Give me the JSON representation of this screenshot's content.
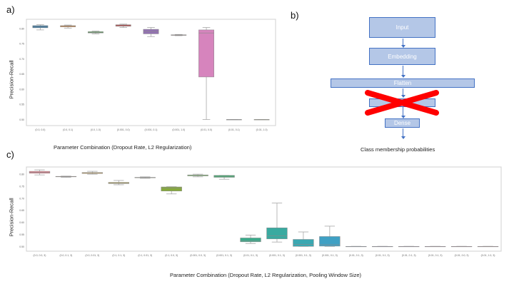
{
  "labels": {
    "a": "a)",
    "b": "b)",
    "c": "c)"
  },
  "chart_data": [
    {
      "type": "box",
      "ylabel": "Precision-Recall",
      "xlabel": "Parameter Combination (Dropout Rate, L2 Regularization)",
      "ylim": [
        0.48,
        0.83
      ],
      "yticks": [
        "0.50",
        "0.55",
        "0.60",
        "0.65",
        "0.70",
        "0.75",
        "0.80"
      ],
      "boxes": [
        {
          "label": "(0.0, 0.0)",
          "color": "#3274a1",
          "min": 0.795,
          "q1": 0.802,
          "median": 0.806,
          "q3": 0.809,
          "max": 0.812
        },
        {
          "label": "(0.0, 0.1)",
          "color": "#e1812c",
          "min": 0.801,
          "q1": 0.805,
          "median": 0.807,
          "q3": 0.809,
          "max": 0.811
        },
        {
          "label": "(0.0, 1.0)",
          "color": "#3a923a",
          "min": 0.782,
          "q1": 0.785,
          "median": 0.787,
          "q3": 0.789,
          "max": 0.791
        },
        {
          "label": "(0.001, 0.0)",
          "color": "#c03d3e",
          "min": 0.803,
          "q1": 0.807,
          "median": 0.809,
          "q3": 0.812,
          "max": 0.814
        },
        {
          "label": "(0.001, 0.1)",
          "color": "#9372b2",
          "min": 0.773,
          "q1": 0.782,
          "median": 0.79,
          "q3": 0.797,
          "max": 0.803
        },
        {
          "label": "(0.001, 1.0)",
          "color": "#845b53",
          "min": 0.776,
          "q1": 0.777,
          "median": 0.778,
          "q3": 0.779,
          "max": 0.78
        },
        {
          "label": "(0.01, 0.0)",
          "color": "#d684bd",
          "min": 0.5,
          "q1": 0.64,
          "median": 0.785,
          "q3": 0.795,
          "max": 0.803
        },
        {
          "label": "(0.01, 0.1)",
          "color": "#7f7f7f",
          "min": 0.5,
          "q1": 0.5,
          "median": 0.5,
          "q3": 0.5,
          "max": 0.5
        },
        {
          "label": "(0.01, 1.0)",
          "color": "#a9aa35",
          "min": 0.5,
          "q1": 0.5,
          "median": 0.5,
          "q3": 0.5,
          "max": 0.5
        }
      ]
    },
    {
      "type": "box",
      "ylabel": "Precision-Recall",
      "xlabel": "Parameter Combination (Dropout Rate, L2 Regularization, Pooling Window Size)",
      "ylim": [
        0.48,
        0.83
      ],
      "yticks": [
        "0.50",
        "0.55",
        "0.60",
        "0.65",
        "0.70",
        "0.75",
        "0.80"
      ],
      "boxes": [
        {
          "label": "(0.0, 0.0, 3)",
          "color": "#e8828f",
          "min": 0.797,
          "q1": 0.804,
          "median": 0.808,
          "q3": 0.812,
          "max": 0.818
        },
        {
          "label": "(0.0, 0.1, 3)",
          "color": "#d88f6c",
          "min": 0.787,
          "q1": 0.789,
          "median": 0.79,
          "q3": 0.791,
          "max": 0.792
        },
        {
          "label": "(0.0, 0.01, 3)",
          "color": "#c89b48",
          "min": 0.8,
          "q1": 0.803,
          "median": 0.806,
          "q3": 0.807,
          "max": 0.812
        },
        {
          "label": "(0.1, 0.1, 3)",
          "color": "#b3a034",
          "min": 0.756,
          "q1": 0.761,
          "median": 0.763,
          "q3": 0.766,
          "max": 0.774
        },
        {
          "label": "(0.1, 0.01, 3)",
          "color": "#9caa3b",
          "min": 0.783,
          "q1": 0.785,
          "median": 0.786,
          "q3": 0.787,
          "max": 0.789
        },
        {
          "label": "(0.1, 0.0, 3)",
          "color": "#86aa3b",
          "min": 0.718,
          "q1": 0.73,
          "median": 0.743,
          "q3": 0.747,
          "max": 0.748
        },
        {
          "label": "(0.001, 0.0, 3)",
          "color": "#5cb347",
          "min": 0.789,
          "q1": 0.793,
          "median": 0.796,
          "q3": 0.797,
          "max": 0.8
        },
        {
          "label": "(0.001, 0.1, 3)",
          "color": "#3fae6f",
          "min": 0.779,
          "q1": 0.787,
          "median": 0.791,
          "q3": 0.795,
          "max": 0.795
        },
        {
          "label": "(0.01, 0.1, 3)",
          "color": "#3aaa8a",
          "min": 0.512,
          "q1": 0.519,
          "median": 0.523,
          "q3": 0.535,
          "max": 0.547
        },
        {
          "label": "(0.001, 0.1, 3)",
          "color": "#39aaa0",
          "min": 0.518,
          "q1": 0.531,
          "median": 0.544,
          "q3": 0.577,
          "max": 0.68
        },
        {
          "label": "(0.001, 0.1, 3)",
          "color": "#3aa8b2",
          "min": 0.5,
          "q1": 0.5,
          "median": 0.508,
          "q3": 0.529,
          "max": 0.56
        },
        {
          "label": "(0.001, 0.1, 3)",
          "color": "#3fa0c4",
          "min": 0.5,
          "q1": 0.501,
          "median": 0.507,
          "q3": 0.541,
          "max": 0.584
        },
        {
          "label": "(0.01, 0.1, 3)",
          "color": "#6aa0d8",
          "min": 0.5,
          "q1": 0.5,
          "median": 0.5,
          "q3": 0.5,
          "max": 0.5
        },
        {
          "label": "(0.01, 0.1, 3)",
          "color": "#9b90d9",
          "min": 0.5,
          "q1": 0.5,
          "median": 0.5,
          "q3": 0.5,
          "max": 0.5
        },
        {
          "label": "(0.01, 0.1, 3)",
          "color": "#c083cf",
          "min": 0.5,
          "q1": 0.5,
          "median": 0.5,
          "q3": 0.5,
          "max": 0.5
        },
        {
          "label": "(0.01, 0.1, 3)",
          "color": "#dc7bbd",
          "min": 0.5,
          "q1": 0.5,
          "median": 0.5,
          "q3": 0.5,
          "max": 0.5
        },
        {
          "label": "(0.01, 0.0, 3)",
          "color": "#e881a6",
          "min": 0.5,
          "q1": 0.5,
          "median": 0.5,
          "q3": 0.5,
          "max": 0.5
        },
        {
          "label": "(0.01, 1.0, 3)",
          "color": "#e8828f",
          "min": 0.5,
          "q1": 0.5,
          "median": 0.5,
          "q3": 0.5,
          "max": 0.5
        }
      ]
    }
  ],
  "diagram": {
    "input": "Input",
    "embedding": "Embedding",
    "flatten": "Flatten",
    "removed": "Dense",
    "dense": "Dense",
    "caption": "Class membership probabilities",
    "box_fill": "#b4c7e7",
    "box_border": "#4472c4",
    "cross_color": "#ff0000"
  }
}
